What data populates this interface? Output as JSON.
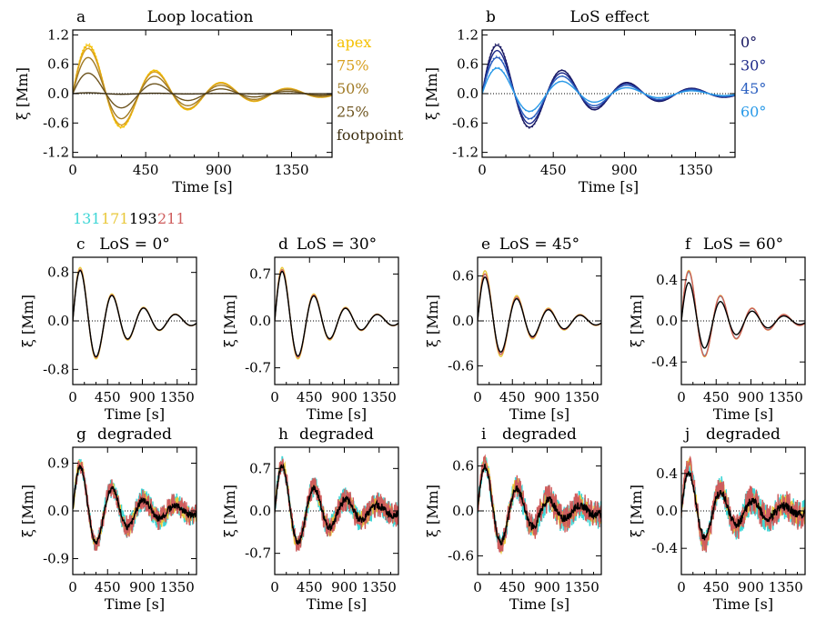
{
  "colors": {
    "apex": "#f5c000",
    "p75": "#d8a020",
    "p50": "#a07a25",
    "p25": "#6e5520",
    "footpoint": "#3c2e10",
    "los0": "#161660",
    "los30": "#1e2a8a",
    "los45": "#2a5fc0",
    "los60": "#2a9ae8",
    "w131": "#3ed6d6",
    "w171": "#e9c83a",
    "w193": "#000000",
    "w211": "#cf5d5d",
    "axis": "#000000"
  },
  "wavelength_legend": [
    {
      "label": "131",
      "color": "#3ed6d6"
    },
    {
      "label": "171",
      "color": "#e9c83a"
    },
    {
      "label": "193",
      "color": "#000000"
    },
    {
      "label": "211",
      "color": "#cf5d5d"
    }
  ],
  "chart_data": [
    {
      "id": "a",
      "letter": "a",
      "title": "Loop location",
      "type": "line",
      "xlabel": "Time [s]",
      "ylabel": "ξ [Mm]",
      "xlim": [
        0,
        1600
      ],
      "ylim": [
        -1.3,
        1.3
      ],
      "xticks": [
        0,
        450,
        900,
        1350
      ],
      "yticks": [
        -1.2,
        -0.6,
        0.0,
        0.6,
        1.2
      ],
      "ytick_labels": [
        "-1.2",
        "-0.6",
        "0.0",
        "0.6",
        "1.2"
      ],
      "legend": {
        "placement": "right-outside",
        "entries": [
          "apex",
          "75%",
          "50%",
          "25%",
          "footpoint"
        ]
      },
      "series": [
        {
          "name": "apex",
          "color": "#f5c000",
          "amp": 1.18,
          "period": 410,
          "tau": 560,
          "dotted": true
        },
        {
          "name": "75%",
          "color": "#d8a020",
          "amp": 1.1,
          "period": 410,
          "tau": 560,
          "dotted": true
        },
        {
          "name": "50%",
          "color": "#a07a25",
          "amp": 0.88,
          "period": 410,
          "tau": 560,
          "dotted": false
        },
        {
          "name": "25%",
          "color": "#6e5520",
          "amp": 0.5,
          "period": 410,
          "tau": 560,
          "dotted": false
        },
        {
          "name": "footpoint",
          "color": "#3c2e10",
          "amp": 0.02,
          "period": 410,
          "tau": 560,
          "dotted": true
        }
      ]
    },
    {
      "id": "b",
      "letter": "b",
      "title": "LoS effect",
      "type": "line",
      "xlabel": "Time [s]",
      "ylabel": "ξ [Mm]",
      "xlim": [
        0,
        1600
      ],
      "ylim": [
        -1.3,
        1.3
      ],
      "xticks": [
        0,
        450,
        900,
        1350
      ],
      "yticks": [
        -1.2,
        -0.6,
        0.0,
        0.6,
        1.2
      ],
      "ytick_labels": [
        "-1.2",
        "-0.6",
        "0.0",
        "0.6",
        "1.2"
      ],
      "legend": {
        "placement": "right-outside",
        "entries": [
          "0°",
          "30°",
          "45°",
          "60°"
        ]
      },
      "series": [
        {
          "name": "0°",
          "color": "#161660",
          "amp": 1.18,
          "period": 410,
          "tau": 560,
          "dotted": true
        },
        {
          "name": "30°",
          "color": "#1e2a8a",
          "amp": 1.05,
          "period": 410,
          "tau": 560,
          "dotted": false
        },
        {
          "name": "45°",
          "color": "#2a5fc0",
          "amp": 0.88,
          "period": 410,
          "tau": 560,
          "dotted": true
        },
        {
          "name": "60°",
          "color": "#2a9ae8",
          "amp": 0.62,
          "period": 410,
          "tau": 560,
          "dotted": true
        }
      ]
    },
    {
      "id": "c",
      "letter": "c",
      "title": "LoS = 0°",
      "type": "line",
      "xlabel": "Time [s]",
      "ylabel": "ξ [Mm]",
      "xlim": [
        0,
        1600
      ],
      "ylim": [
        -1.05,
        1.05
      ],
      "xticks": [
        0,
        450,
        900,
        1350
      ],
      "yticks": [
        -0.8,
        0.0,
        0.8
      ],
      "ytick_labels": [
        "-0.8",
        "0.0",
        "0.8"
      ],
      "series": [
        {
          "name": "131",
          "color": "#3ed6d6",
          "amp": 1.0,
          "period": 410,
          "tau": 600,
          "noise": 0
        },
        {
          "name": "171",
          "color": "#e9c83a",
          "amp": 1.04,
          "period": 410,
          "tau": 600,
          "noise": 0
        },
        {
          "name": "211",
          "color": "#cf5d5d",
          "amp": 1.0,
          "period": 410,
          "tau": 600,
          "noise": 0
        },
        {
          "name": "193",
          "color": "#000000",
          "amp": 0.98,
          "period": 410,
          "tau": 600,
          "noise": 0
        }
      ]
    },
    {
      "id": "d",
      "letter": "d",
      "title": "LoS = 30°",
      "type": "line",
      "xlabel": "Time [s]",
      "ylabel": "ξ [Mm]",
      "xlim": [
        0,
        1600
      ],
      "ylim": [
        -0.95,
        0.95
      ],
      "xticks": [
        0,
        450,
        900,
        1350
      ],
      "yticks": [
        -0.7,
        0.0,
        0.7
      ],
      "ytick_labels": [
        "-0.7",
        "0.0",
        "0.7"
      ],
      "series": [
        {
          "name": "131",
          "color": "#3ed6d6",
          "amp": 0.9,
          "period": 410,
          "tau": 600,
          "noise": 0
        },
        {
          "name": "171",
          "color": "#e9c83a",
          "amp": 0.94,
          "period": 410,
          "tau": 600,
          "noise": 0
        },
        {
          "name": "211",
          "color": "#cf5d5d",
          "amp": 0.9,
          "period": 410,
          "tau": 600,
          "noise": 0
        },
        {
          "name": "193",
          "color": "#000000",
          "amp": 0.87,
          "period": 410,
          "tau": 600,
          "noise": 0
        }
      ]
    },
    {
      "id": "e",
      "letter": "e",
      "title": "LoS = 45°",
      "type": "line",
      "xlabel": "Time [s]",
      "ylabel": "ξ [Mm]",
      "xlim": [
        0,
        1600
      ],
      "ylim": [
        -0.85,
        0.85
      ],
      "xticks": [
        0,
        450,
        900,
        1350
      ],
      "yticks": [
        -0.6,
        0.0,
        0.6
      ],
      "ytick_labels": [
        "-0.6",
        "0.0",
        "0.6"
      ],
      "series": [
        {
          "name": "131",
          "color": "#3ed6d6",
          "amp": 0.74,
          "period": 410,
          "tau": 600,
          "noise": 0
        },
        {
          "name": "171",
          "color": "#e9c83a",
          "amp": 0.79,
          "period": 410,
          "tau": 600,
          "noise": 0
        },
        {
          "name": "211",
          "color": "#cf5d5d",
          "amp": 0.74,
          "period": 410,
          "tau": 600,
          "noise": 0
        },
        {
          "name": "193",
          "color": "#000000",
          "amp": 0.69,
          "period": 410,
          "tau": 600,
          "noise": 0
        }
      ]
    },
    {
      "id": "f",
      "letter": "f",
      "title": "LoS = 60°",
      "type": "line",
      "xlabel": "Time [s]",
      "ylabel": "ξ [Mm]",
      "xlim": [
        0,
        1600
      ],
      "ylim": [
        -0.62,
        0.62
      ],
      "xticks": [
        0,
        450,
        900,
        1350
      ],
      "yticks": [
        -0.4,
        0.0,
        0.4
      ],
      "ytick_labels": [
        "-0.4",
        "0.0",
        "0.4"
      ],
      "series": [
        {
          "name": "131",
          "color": "#3ed6d6",
          "amp": 0.56,
          "period": 410,
          "tau": 600,
          "noise": 0
        },
        {
          "name": "171",
          "color": "#e9c83a",
          "amp": 0.58,
          "period": 410,
          "tau": 600,
          "noise": 0
        },
        {
          "name": "211",
          "color": "#cf5d5d",
          "amp": 0.57,
          "period": 410,
          "tau": 600,
          "noise": 0
        },
        {
          "name": "193",
          "color": "#000000",
          "amp": 0.44,
          "period": 410,
          "tau": 600,
          "noise": 0
        }
      ]
    },
    {
      "id": "g",
      "letter": "g",
      "title": "degraded",
      "type": "line",
      "xlabel": "Time [s]",
      "ylabel": "ξ [Mm]",
      "xlim": [
        0,
        1600
      ],
      "ylim": [
        -1.2,
        1.2
      ],
      "xticks": [
        0,
        450,
        900,
        1350
      ],
      "yticks": [
        -0.9,
        0.0,
        0.9
      ],
      "ytick_labels": [
        "-0.9",
        "0.0",
        "0.9"
      ],
      "series": [
        {
          "name": "131",
          "color": "#3ed6d6",
          "amp": 1.0,
          "period": 410,
          "tau": 600,
          "noise": 0.14
        },
        {
          "name": "171",
          "color": "#e9c83a",
          "amp": 1.04,
          "period": 410,
          "tau": 600,
          "noise": 0.1
        },
        {
          "name": "211",
          "color": "#cf5d5d",
          "amp": 1.0,
          "period": 410,
          "tau": 600,
          "noise": 0.14
        },
        {
          "name": "193",
          "color": "#000000",
          "amp": 0.98,
          "period": 410,
          "tau": 600,
          "noise": 0.04
        }
      ]
    },
    {
      "id": "h",
      "letter": "h",
      "title": "degraded",
      "type": "line",
      "xlabel": "Time [s]",
      "ylabel": "ξ [Mm]",
      "xlim": [
        0,
        1600
      ],
      "ylim": [
        -1.05,
        1.05
      ],
      "xticks": [
        0,
        450,
        900,
        1350
      ],
      "yticks": [
        -0.7,
        0.0,
        0.7
      ],
      "ytick_labels": [
        "-0.7",
        "0.0",
        "0.7"
      ],
      "series": [
        {
          "name": "131",
          "color": "#3ed6d6",
          "amp": 0.9,
          "period": 410,
          "tau": 600,
          "noise": 0.13
        },
        {
          "name": "171",
          "color": "#e9c83a",
          "amp": 0.94,
          "period": 410,
          "tau": 600,
          "noise": 0.09
        },
        {
          "name": "211",
          "color": "#cf5d5d",
          "amp": 0.9,
          "period": 410,
          "tau": 600,
          "noise": 0.13
        },
        {
          "name": "193",
          "color": "#000000",
          "amp": 0.87,
          "period": 410,
          "tau": 600,
          "noise": 0.04
        }
      ]
    },
    {
      "id": "i",
      "letter": "i",
      "title": "degraded",
      "type": "line",
      "xlabel": "Time [s]",
      "ylabel": "ξ [Mm]",
      "xlim": [
        0,
        1600
      ],
      "ylim": [
        -0.85,
        0.85
      ],
      "xticks": [
        0,
        450,
        900,
        1350
      ],
      "yticks": [
        -0.6,
        0.0,
        0.6
      ],
      "ytick_labels": [
        "-0.6",
        "0.0",
        "0.6"
      ],
      "series": [
        {
          "name": "131",
          "color": "#3ed6d6",
          "amp": 0.74,
          "period": 410,
          "tau": 600,
          "noise": 0.12
        },
        {
          "name": "171",
          "color": "#e9c83a",
          "amp": 0.79,
          "period": 410,
          "tau": 600,
          "noise": 0.08
        },
        {
          "name": "211",
          "color": "#cf5d5d",
          "amp": 0.74,
          "period": 410,
          "tau": 600,
          "noise": 0.12
        },
        {
          "name": "193",
          "color": "#000000",
          "amp": 0.69,
          "period": 410,
          "tau": 600,
          "noise": 0.035
        }
      ]
    },
    {
      "id": "j",
      "letter": "j",
      "title": "degraded",
      "type": "line",
      "xlabel": "Time [s]",
      "ylabel": "ξ [Mm]",
      "xlim": [
        0,
        1600
      ],
      "ylim": [
        -0.68,
        0.68
      ],
      "xticks": [
        0,
        450,
        900,
        1350
      ],
      "yticks": [
        -0.4,
        0.0,
        0.4
      ],
      "ytick_labels": [
        "-0.4",
        "0.0",
        "0.4"
      ],
      "series": [
        {
          "name": "131",
          "color": "#3ed6d6",
          "amp": 0.56,
          "period": 410,
          "tau": 600,
          "noise": 0.1
        },
        {
          "name": "171",
          "color": "#e9c83a",
          "amp": 0.58,
          "period": 410,
          "tau": 600,
          "noise": 0.07
        },
        {
          "name": "211",
          "color": "#cf5d5d",
          "amp": 0.57,
          "period": 410,
          "tau": 600,
          "noise": 0.1
        },
        {
          "name": "193",
          "color": "#000000",
          "amp": 0.48,
          "period": 410,
          "tau": 600,
          "noise": 0.03
        }
      ]
    }
  ]
}
